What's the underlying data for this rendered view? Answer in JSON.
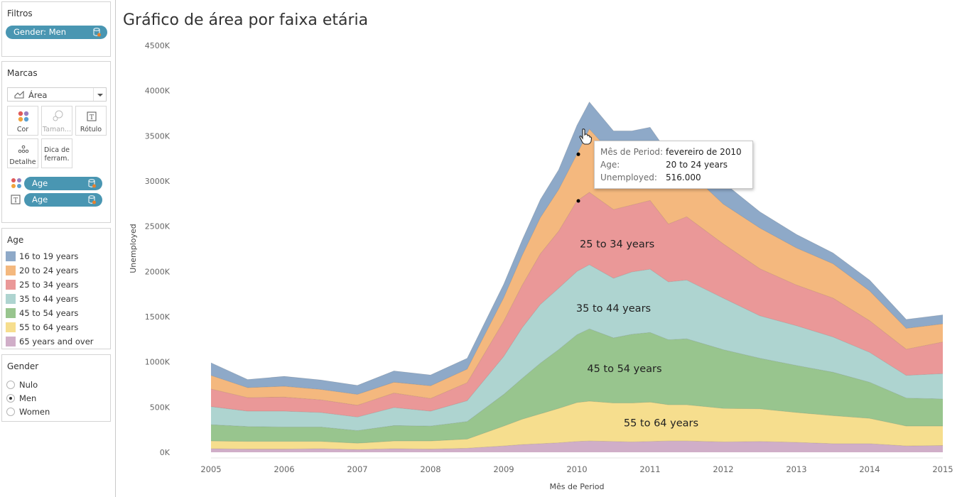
{
  "filters": {
    "title": "Filtros",
    "pill": "Gender: Men"
  },
  "marks": {
    "title": "Marcas",
    "type": "Área",
    "buttons": [
      "Cor",
      "Taman...",
      "Rótulo",
      "Detalhe",
      "Dica de ferram."
    ],
    "pills": [
      "Age",
      "Age"
    ]
  },
  "age_legend": {
    "title": "Age",
    "items": [
      {
        "label": "16 to 19 years",
        "color": "#8ea9c8"
      },
      {
        "label": "20 to 24 years",
        "color": "#f4b87e"
      },
      {
        "label": "25 to 34 years",
        "color": "#ea9898"
      },
      {
        "label": "35 to 44 years",
        "color": "#aed4d0"
      },
      {
        "label": "45 to 54 years",
        "color": "#98c58e"
      },
      {
        "label": "55 to 64 years",
        "color": "#f6de8e"
      },
      {
        "label": "65 years and over",
        "color": "#d0aec8"
      }
    ]
  },
  "gender_filter": {
    "title": "Gender",
    "options": [
      {
        "label": "Nulo",
        "selected": false
      },
      {
        "label": "Men",
        "selected": true
      },
      {
        "label": "Women",
        "selected": false
      }
    ]
  },
  "tooltip": {
    "rows": [
      {
        "key": "Mês de Period:",
        "value": "fevereiro de 2010"
      },
      {
        "key": "Age:",
        "value": "20 to 24 years"
      },
      {
        "key": "Unemployed:",
        "value": "516.000"
      }
    ]
  },
  "chart_data": {
    "type": "area",
    "title": "Gráfico de área por faixa etária",
    "xlabel": "Mês de Period",
    "ylabel": "Unemployed",
    "ylim": [
      0,
      4500
    ],
    "y_unit": "K",
    "yticks": [
      "0K",
      "500K",
      "1000K",
      "1500K",
      "2000K",
      "2500K",
      "3000K",
      "3500K",
      "4000K",
      "4500K"
    ],
    "x": [
      2005.0,
      2005.5,
      2006.0,
      2006.5,
      2007.0,
      2007.5,
      2008.0,
      2008.5,
      2009.0,
      2009.25,
      2009.5,
      2009.75,
      2010.0,
      2010.17,
      2010.5,
      2010.75,
      2011.0,
      2011.25,
      2011.5,
      2012.0,
      2012.5,
      2013.0,
      2013.5,
      2014.0,
      2014.5,
      2015.0
    ],
    "xticks": [
      "2005",
      "2006",
      "2007",
      "2008",
      "2009",
      "2010",
      "2011",
      "2012",
      "2013",
      "2014",
      "2015"
    ],
    "series": [
      {
        "name": "65 years and over",
        "color": "#d0aec8",
        "values": [
          40,
          35,
          35,
          40,
          30,
          40,
          35,
          45,
          70,
          85,
          95,
          105,
          120,
          125,
          120,
          115,
          120,
          125,
          125,
          115,
          120,
          110,
          95,
          95,
          70,
          75
        ]
      },
      {
        "name": "55 to 64 years",
        "color": "#f6de8e",
        "values": [
          85,
          85,
          85,
          80,
          70,
          85,
          90,
          100,
          220,
          280,
          330,
          380,
          430,
          440,
          425,
          430,
          435,
          400,
          400,
          370,
          360,
          330,
          310,
          280,
          220,
          215
        ]
      },
      {
        "name": "45 to 54 years",
        "color": "#98c58e",
        "values": [
          180,
          165,
          160,
          160,
          140,
          170,
          165,
          195,
          350,
          450,
          560,
          650,
          750,
          800,
          720,
          760,
          770,
          720,
          730,
          650,
          560,
          520,
          480,
          400,
          310,
          300
        ]
      },
      {
        "name": "35 to 44 years",
        "color": "#aed4d0",
        "values": [
          200,
          170,
          175,
          160,
          150,
          200,
          165,
          230,
          420,
          560,
          650,
          680,
          700,
          710,
          660,
          690,
          700,
          640,
          650,
          570,
          470,
          440,
          390,
          330,
          250,
          280
        ]
      },
      {
        "name": "25 to 34 years",
        "color": "#ea9898",
        "values": [
          195,
          150,
          155,
          140,
          130,
          160,
          140,
          200,
          390,
          470,
          560,
          630,
          780,
          800,
          760,
          740,
          760,
          640,
          700,
          600,
          520,
          450,
          430,
          350,
          290,
          350
        ]
      },
      {
        "name": "20 to 24 years",
        "color": "#f4b87e",
        "values": [
          150,
          110,
          120,
          115,
          120,
          120,
          140,
          150,
          260,
          330,
          400,
          460,
          516,
          700,
          600,
          560,
          520,
          520,
          520,
          440,
          450,
          410,
          380,
          330,
          230,
          200
        ]
      },
      {
        "name": "16 to 19 years",
        "color": "#8ea9c8",
        "values": [
          140,
          90,
          110,
          105,
          100,
          125,
          120,
          120,
          150,
          170,
          200,
          220,
          320,
          300,
          270,
          260,
          290,
          260,
          270,
          240,
          180,
          150,
          120,
          120,
          100,
          100
        ]
      }
    ],
    "labels": [
      {
        "text": "25 to 34 years",
        "series": "25 to 34 years",
        "x": 2010.55
      },
      {
        "text": "35 to 44 years",
        "series": "35 to 44 years",
        "x": 2010.5
      },
      {
        "text": "45 to 54 years",
        "series": "45 to 54 years",
        "x": 2010.65
      },
      {
        "text": "55 to 64 years",
        "series": "55 to 64 years",
        "x": 2011.15
      }
    ]
  }
}
